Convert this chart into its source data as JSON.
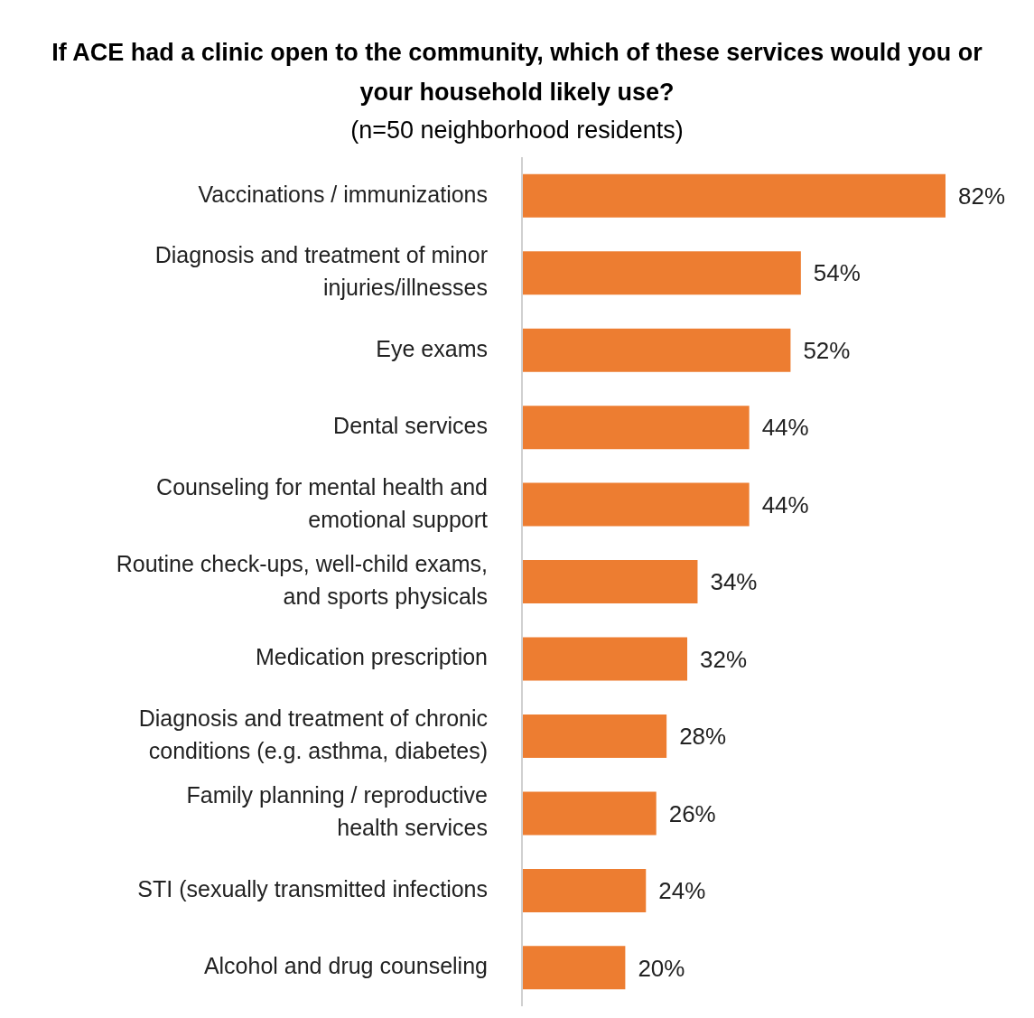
{
  "chart_data": {
    "type": "bar",
    "orientation": "horizontal",
    "title": "If ACE had a clinic open to the community, which of these services would you or your household likely use?",
    "subtitle": "(n=50 neighborhood residents)",
    "categories": [
      "Vaccinations / immunizations",
      "Diagnosis and treatment of minor injuries/illnesses",
      "Eye exams",
      "Dental services",
      "Counseling for mental health and emotional support",
      "Routine check-ups, well-child exams, and sports physicals",
      "Medication prescription",
      "Diagnosis and treatment of chronic conditions (e.g. asthma, diabetes)",
      "Family planning / reproductive health services",
      "STI (sexually transmitted infections",
      "Alcohol and drug counseling"
    ],
    "values": [
      82,
      54,
      52,
      44,
      44,
      34,
      32,
      28,
      26,
      24,
      20
    ],
    "value_labels": [
      "82%",
      "54%",
      "52%",
      "44%",
      "44%",
      "34%",
      "32%",
      "28%",
      "26%",
      "24%",
      "20%"
    ],
    "color": "#ed7d31",
    "tick_labels": "y"
  }
}
